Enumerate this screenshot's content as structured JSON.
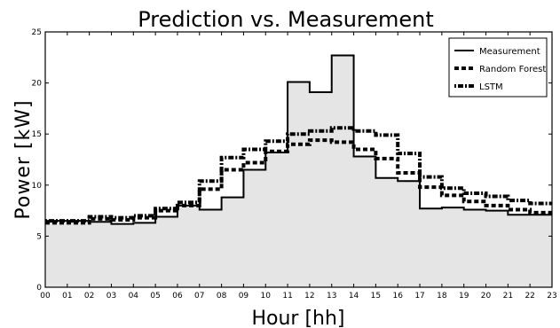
{
  "chart_data": {
    "type": "line",
    "step": true,
    "title": "Prediction vs. Measurement",
    "xlabel": "Hour [hh]",
    "ylabel": "Power [kW]",
    "x_tick_labels": [
      "00",
      "01",
      "02",
      "03",
      "04",
      "05",
      "06",
      "07",
      "08",
      "09",
      "10",
      "11",
      "12",
      "13",
      "14",
      "15",
      "16",
      "17",
      "18",
      "19",
      "20",
      "21",
      "22",
      "23"
    ],
    "y_ticks": [
      0,
      5,
      10,
      15,
      20,
      25
    ],
    "xlim": [
      0,
      23
    ],
    "ylim": [
      0,
      25
    ],
    "grid": false,
    "legend_position": "top-right",
    "measurement_fill_color": "#e5e5e5",
    "series": [
      {
        "name": "Measurement",
        "style": "solid",
        "color": "#000000",
        "values": [
          6.5,
          6.5,
          6.4,
          6.2,
          6.3,
          6.9,
          8.0,
          7.6,
          8.8,
          11.5,
          13.2,
          20.1,
          19.1,
          22.7,
          12.8,
          10.7,
          10.4,
          7.7,
          7.8,
          7.6,
          7.5,
          7.1,
          7.1
        ]
      },
      {
        "name": "Random Forest",
        "style": "dashed",
        "color": "#000000",
        "values": [
          6.3,
          6.3,
          6.7,
          6.6,
          6.8,
          7.5,
          8.0,
          9.6,
          11.5,
          12.2,
          13.3,
          14.0,
          14.4,
          14.2,
          13.5,
          12.6,
          11.2,
          9.8,
          9.0,
          8.4,
          8.0,
          7.6,
          7.3
        ]
      },
      {
        "name": "LSTM",
        "style": "dashdot",
        "color": "#000000",
        "values": [
          6.5,
          6.5,
          6.9,
          6.8,
          7.0,
          7.7,
          8.3,
          10.4,
          12.7,
          13.5,
          14.3,
          15.0,
          15.3,
          15.6,
          15.3,
          14.9,
          13.1,
          10.8,
          9.7,
          9.2,
          8.9,
          8.5,
          8.2
        ]
      }
    ]
  }
}
